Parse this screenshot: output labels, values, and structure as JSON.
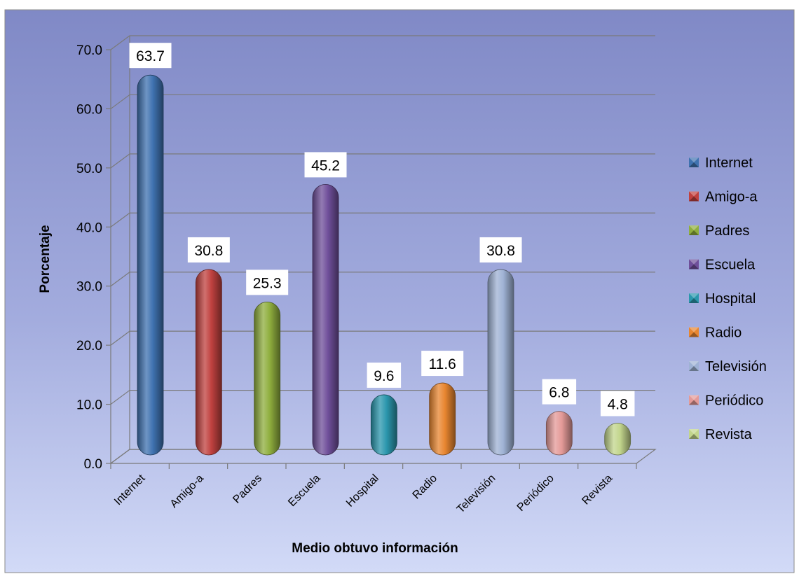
{
  "chart_data": {
    "type": "bar",
    "title": "",
    "xlabel": "Medio obtuvo información",
    "ylabel": "Porcentaje",
    "ylim": [
      0,
      70
    ],
    "yticks": [
      0,
      10,
      20,
      30,
      40,
      50,
      60,
      70
    ],
    "ytick_labels": [
      "0.0",
      "10.0",
      "20.0",
      "30.0",
      "40.0",
      "50.0",
      "60.0",
      "70.0"
    ],
    "grid": true,
    "legend_position": "right",
    "categories": [
      "Internet",
      "Amigo-a",
      "Padres",
      "Escuela",
      "Hospital",
      "Radio",
      "Televisión",
      "Periódico",
      "Revista"
    ],
    "values": [
      63.7,
      30.8,
      25.3,
      45.2,
      9.6,
      11.6,
      30.8,
      6.8,
      4.8
    ],
    "data_labels": [
      "63.7",
      "30.8",
      "25.3",
      "45.2",
      "9.6",
      "11.6",
      "30.8",
      "6.8",
      "4.8"
    ],
    "colors": [
      "#3f72b0",
      "#c0413f",
      "#8fae3e",
      "#6f4f9a",
      "#2b97ad",
      "#e88630",
      "#9fb2d4",
      "#e49a98",
      "#c2d58c"
    ]
  }
}
